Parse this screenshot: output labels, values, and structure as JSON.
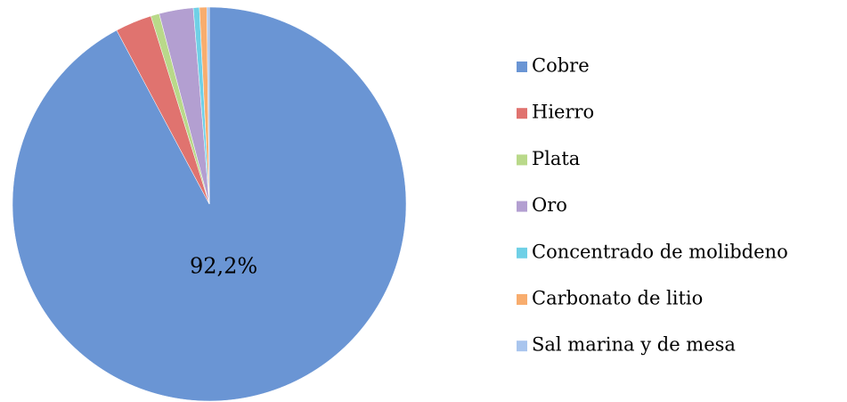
{
  "chart_data": {
    "type": "pie",
    "categories": [
      "Cobre",
      "Hierro",
      "Plata",
      "Oro",
      "Concentrado de molibdeno",
      "Carbonato de litio",
      "Sal marina y de mesa"
    ],
    "values": [
      92.2,
      3.0,
      0.7,
      2.8,
      0.5,
      0.6,
      0.2
    ],
    "value_labels": [
      "92,2%",
      null,
      null,
      null,
      null,
      null,
      null
    ],
    "colors": [
      "#6a95d4",
      "#e0736f",
      "#b9d98a",
      "#b39fd1",
      "#6fd0e6",
      "#f8ad6e",
      "#a9c5ee"
    ],
    "legend": "right"
  }
}
